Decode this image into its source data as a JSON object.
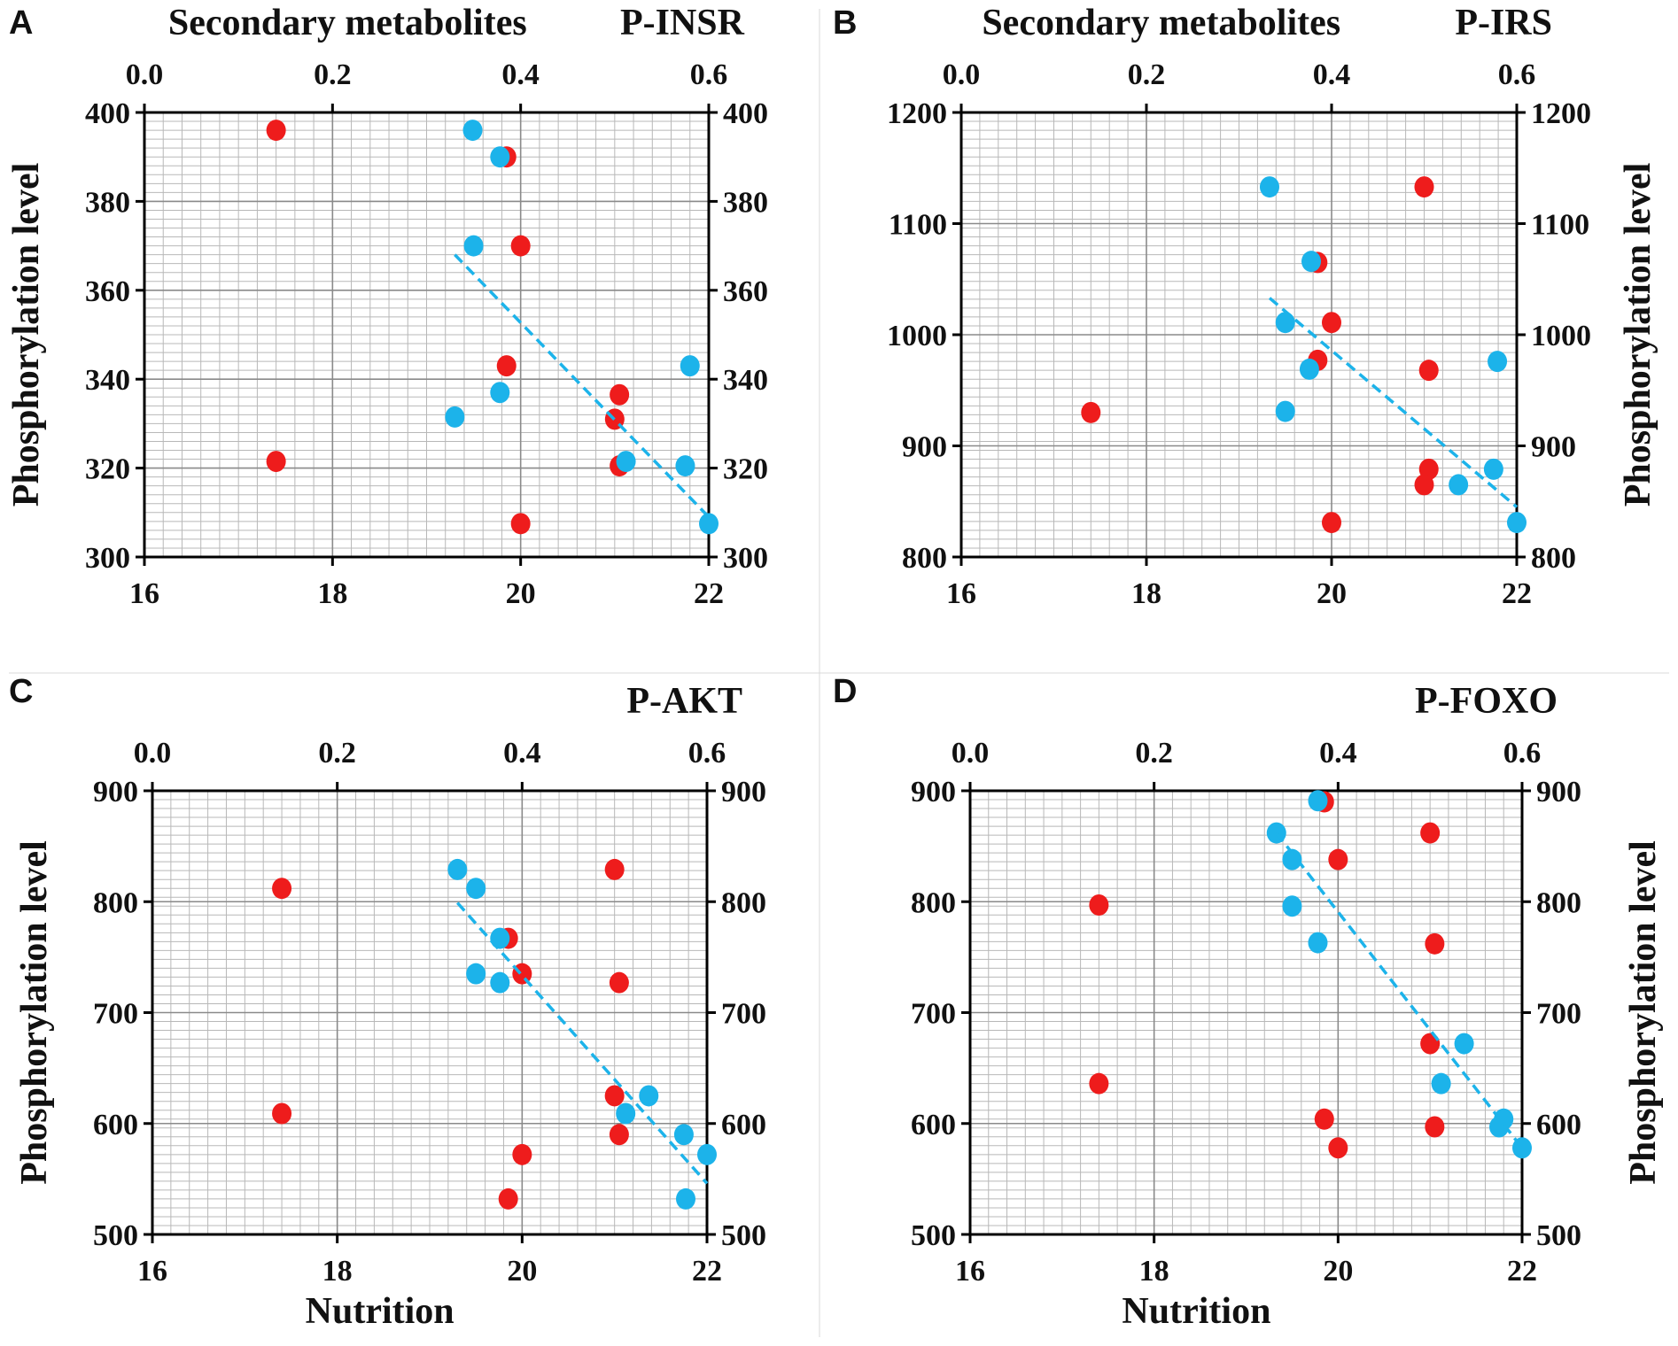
{
  "figure": {
    "colors": {
      "series_bottom": "#ee1c1c",
      "series_top": "#1cb3ea",
      "trend": "#1cb3ea",
      "grid_minor": "#b8b8b8",
      "grid_major": "#8a8a8a"
    }
  },
  "chart_data": [
    {
      "type": "scatter",
      "panel_label": "A",
      "title": "P-INSR",
      "top_xlabel": "Secondary metabolites",
      "xlabel": "",
      "ylabel_left": "Phosphorylation level",
      "ylabel_right": "",
      "xlim_bottom": [
        16,
        22
      ],
      "xticks_bottom": [
        "16",
        "18",
        "20",
        "22"
      ],
      "xlim_top": [
        0.0,
        0.6
      ],
      "xticks_top": [
        "0.0",
        "0.2",
        "0.4",
        "0.6"
      ],
      "ylim": [
        300,
        400
      ],
      "yticks": [
        "300",
        "320",
        "340",
        "360",
        "380",
        "400"
      ],
      "series": [
        {
          "name": "Nutrition",
          "axis": "bottom",
          "color": "#ee1c1c",
          "points": [
            [
              17.4,
              396
            ],
            [
              17.4,
              321.5
            ],
            [
              19.85,
              390
            ],
            [
              20.0,
              370
            ],
            [
              19.85,
              343
            ],
            [
              21.05,
              336.5
            ],
            [
              21.0,
              331
            ],
            [
              21.05,
              320.5
            ],
            [
              20.0,
              307.5
            ]
          ]
        },
        {
          "name": "Secondary metabolites",
          "axis": "top",
          "color": "#1cb3ea",
          "points": [
            [
              0.349,
              396
            ],
            [
              0.378,
              390
            ],
            [
              0.35,
              370
            ],
            [
              0.378,
              337
            ],
            [
              0.33,
              331.5
            ],
            [
              0.512,
              321.5
            ],
            [
              0.575,
              320.5
            ],
            [
              0.58,
              343
            ],
            [
              0.6,
              307.5
            ]
          ]
        }
      ],
      "trendline": {
        "axis": "top",
        "from": [
          0.33,
          368
        ],
        "to": [
          0.6,
          309
        ]
      }
    },
    {
      "type": "scatter",
      "panel_label": "B",
      "title": "P-IRS",
      "top_xlabel": "Secondary metabolites",
      "xlabel": "",
      "ylabel_left": "",
      "ylabel_right": "Phosphorylation level",
      "xlim_bottom": [
        16,
        22
      ],
      "xticks_bottom": [
        "16",
        "18",
        "20",
        "22"
      ],
      "xlim_top": [
        0.0,
        0.6
      ],
      "xticks_top": [
        "0.0",
        "0.2",
        "0.4",
        "0.6"
      ],
      "ylim": [
        800,
        1200
      ],
      "yticks": [
        "800",
        "900",
        "1000",
        "1100",
        "1200"
      ],
      "series": [
        {
          "name": "Nutrition",
          "axis": "bottom",
          "color": "#ee1c1c",
          "points": [
            [
              17.4,
              930
            ],
            [
              19.85,
              1065
            ],
            [
              20.0,
              1011
            ],
            [
              19.85,
              977
            ],
            [
              21.0,
              1133
            ],
            [
              21.05,
              968
            ],
            [
              21.05,
              879
            ],
            [
              21.0,
              865
            ],
            [
              20.0,
              831
            ]
          ]
        },
        {
          "name": "Secondary metabolites",
          "axis": "top",
          "color": "#1cb3ea",
          "points": [
            [
              0.333,
              1133
            ],
            [
              0.378,
              1066
            ],
            [
              0.35,
              1011
            ],
            [
              0.376,
              969
            ],
            [
              0.35,
              931
            ],
            [
              0.537,
              865
            ],
            [
              0.575,
              879
            ],
            [
              0.579,
              976
            ],
            [
              0.6,
              831
            ]
          ]
        }
      ],
      "trendline": {
        "axis": "top",
        "from": [
          0.333,
          1033
        ],
        "to": [
          0.6,
          845
        ]
      }
    },
    {
      "type": "scatter",
      "panel_label": "C",
      "title": "P-AKT",
      "top_xlabel": "",
      "xlabel": "Nutrition",
      "ylabel_left": "Phosphorylation level",
      "ylabel_right": "",
      "xlim_bottom": [
        16,
        22
      ],
      "xticks_bottom": [
        "16",
        "18",
        "20",
        "22"
      ],
      "xlim_top": [
        0.0,
        0.6
      ],
      "xticks_top": [
        "0.0",
        "0.2",
        "0.4",
        "0.6"
      ],
      "ylim": [
        500,
        900
      ],
      "yticks": [
        "500",
        "600",
        "700",
        "800",
        "900"
      ],
      "series": [
        {
          "name": "Nutrition",
          "axis": "bottom",
          "color": "#ee1c1c",
          "points": [
            [
              17.4,
              812
            ],
            [
              17.4,
              609
            ],
            [
              19.85,
              767
            ],
            [
              20.0,
              735
            ],
            [
              21.0,
              829
            ],
            [
              21.05,
              727
            ],
            [
              21.0,
              625
            ],
            [
              21.05,
              590
            ],
            [
              20.0,
              572
            ],
            [
              19.85,
              532
            ]
          ]
        },
        {
          "name": "Secondary metabolites",
          "axis": "top",
          "color": "#1cb3ea",
          "points": [
            [
              0.33,
              829
            ],
            [
              0.35,
              812
            ],
            [
              0.376,
              767
            ],
            [
              0.35,
              735
            ],
            [
              0.376,
              727
            ],
            [
              0.537,
              625
            ],
            [
              0.512,
              609
            ],
            [
              0.575,
              590
            ],
            [
              0.6,
              572
            ],
            [
              0.577,
              532
            ]
          ]
        }
      ],
      "trendline": {
        "axis": "top",
        "from": [
          0.33,
          799
        ],
        "to": [
          0.6,
          546
        ]
      }
    },
    {
      "type": "scatter",
      "panel_label": "D",
      "title": "P-FOXO",
      "top_xlabel": "",
      "xlabel": "Nutrition",
      "ylabel_left": "",
      "ylabel_right": "Phosphorylation level",
      "xlim_bottom": [
        16,
        22
      ],
      "xticks_bottom": [
        "16",
        "18",
        "20",
        "22"
      ],
      "xlim_top": [
        0.0,
        0.6
      ],
      "xticks_top": [
        "0.0",
        "0.2",
        "0.4",
        "0.6"
      ],
      "ylim": [
        500,
        900
      ],
      "yticks": [
        "500",
        "600",
        "700",
        "800",
        "900"
      ],
      "series": [
        {
          "name": "Nutrition",
          "axis": "bottom",
          "color": "#ee1c1c",
          "points": [
            [
              17.4,
              797
            ],
            [
              17.4,
              636
            ],
            [
              19.85,
              890
            ],
            [
              20.0,
              838
            ],
            [
              21.0,
              862
            ],
            [
              21.05,
              762
            ],
            [
              21.0,
              672
            ],
            [
              19.85,
              604
            ],
            [
              21.05,
              597
            ],
            [
              20.0,
              578
            ]
          ]
        },
        {
          "name": "Secondary metabolites",
          "axis": "top",
          "color": "#1cb3ea",
          "points": [
            [
              0.378,
              891
            ],
            [
              0.333,
              862
            ],
            [
              0.35,
              838
            ],
            [
              0.35,
              796
            ],
            [
              0.378,
              763
            ],
            [
              0.537,
              672
            ],
            [
              0.512,
              636
            ],
            [
              0.58,
              604
            ],
            [
              0.575,
              597
            ],
            [
              0.6,
              578
            ]
          ]
        }
      ],
      "trendline": {
        "axis": "top",
        "from": [
          0.333,
          862
        ],
        "to": [
          0.6,
          578
        ]
      }
    }
  ]
}
